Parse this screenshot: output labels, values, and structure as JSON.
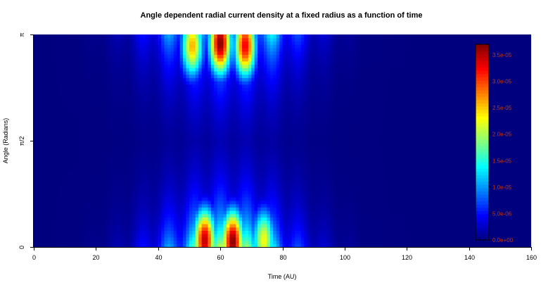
{
  "chart_data": {
    "type": "heatmap",
    "title": "Angle dependent radial current density at a fixed radius as a function of time",
    "xlabel": "Time (AU)",
    "ylabel": "Angle (Radians)",
    "xlim": [
      0,
      160
    ],
    "ylim": [
      0,
      3.14159
    ],
    "x_ticks": [
      0,
      20,
      40,
      60,
      80,
      100,
      120,
      140,
      160
    ],
    "y_ticks": [
      {
        "value": 0,
        "label": "0"
      },
      {
        "value": 1.5708,
        "label": "π/2"
      },
      {
        "value": 3.14159,
        "label": "π"
      }
    ],
    "colorbar": {
      "range": [
        0,
        3.7e-05
      ],
      "ticks": [
        {
          "value": 0,
          "label": "0.0e+00"
        },
        {
          "value": 5e-06,
          "label": "5.0e-06"
        },
        {
          "value": 1e-05,
          "label": "1.0e-05"
        },
        {
          "value": 1.5e-05,
          "label": "1.5e-05"
        },
        {
          "value": 2e-05,
          "label": "2.0e-05"
        },
        {
          "value": 2.5e-05,
          "label": "2.5e-05"
        },
        {
          "value": 3e-05,
          "label": "3.0e-05"
        },
        {
          "value": 3.5e-05,
          "label": "3.5e-05"
        }
      ],
      "colormap": [
        "#00007f",
        "#0000ff",
        "#007fff",
        "#00ffff",
        "#7fff7f",
        "#ffff00",
        "#ff7f00",
        "#ff0000",
        "#7f0000"
      ]
    },
    "hotspots": [
      {
        "time": 51,
        "angle": 2.98,
        "value": 2.6e-05
      },
      {
        "time": 60,
        "angle": 3.02,
        "value": 3.7e-05
      },
      {
        "time": 68,
        "angle": 2.98,
        "value": 3.3e-05
      },
      {
        "time": 55,
        "angle": 0.1,
        "value": 3.5e-05
      },
      {
        "time": 64,
        "angle": 0.08,
        "value": 3.7e-05
      },
      {
        "time": 74,
        "angle": 0.1,
        "value": 2.3e-05
      }
    ],
    "grid": false,
    "colorbar_placement": "right-inside"
  }
}
